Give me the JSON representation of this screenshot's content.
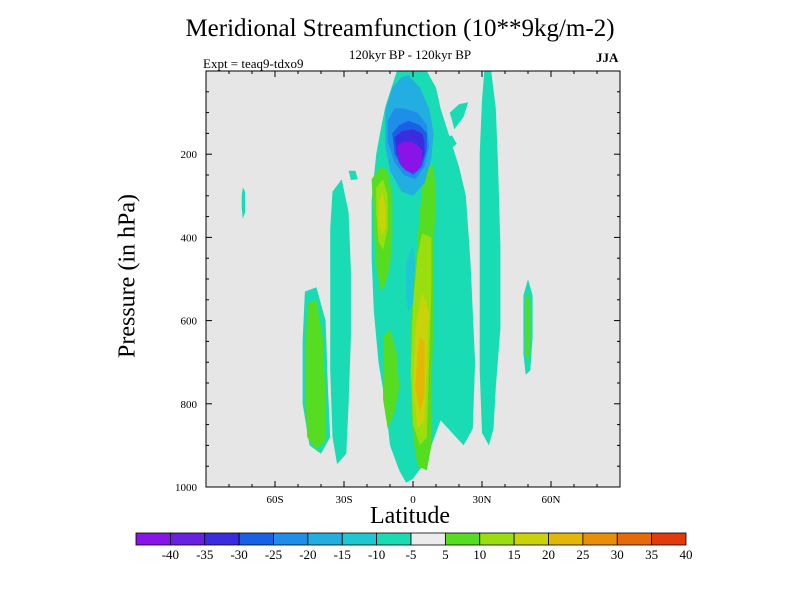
{
  "chart_data": {
    "type": "heatmap",
    "title": "Meridional Streamfunction (10**9kg/m-2)",
    "subtitle": "120kyr BP - 120kyr BP",
    "left_label": "Expt = teaq9-tdxo9",
    "right_label": "JJA",
    "xlabel": "Latitude",
    "ylabel": "Pressure (in hPa)",
    "xlim": [
      -90,
      90
    ],
    "ylim": [
      0,
      1000
    ],
    "y_inverted": true,
    "x_ticks": [
      {
        "value": -60,
        "label": "60S"
      },
      {
        "value": -30,
        "label": "30S"
      },
      {
        "value": 0,
        "label": "0"
      },
      {
        "value": 30,
        "label": "30N"
      },
      {
        "value": 60,
        "label": "60N"
      }
    ],
    "y_ticks": [
      {
        "value": 200,
        "label": "200"
      },
      {
        "value": 400,
        "label": "400"
      },
      {
        "value": 600,
        "label": "600"
      },
      {
        "value": 800,
        "label": "800"
      },
      {
        "value": 1000,
        "label": "1000"
      }
    ],
    "background_color": "#e6e6e6",
    "colorbar": {
      "levels": [
        "-40",
        "-35",
        "-30",
        "-25",
        "-20",
        "-15",
        "-10",
        "-5",
        "5",
        "10",
        "15",
        "20",
        "25",
        "30",
        "35",
        "40"
      ],
      "colors": [
        "#8a14e8",
        "#6a20e0",
        "#3c2ce0",
        "#1a60e6",
        "#1f8ee8",
        "#22aee0",
        "#1ec8d2",
        "#1adcb4",
        "#ececec",
        "#56dc20",
        "#9ade0e",
        "#cad20a",
        "#e4b606",
        "#ea8e08",
        "#e66a08",
        "#e23a08"
      ]
    },
    "regions": [
      {
        "name": "pos-5-a",
        "fill": "#1adcb4",
        "pts": [
          [
            -47,
            530
          ],
          [
            -42,
            520
          ],
          [
            -38,
            600
          ],
          [
            -37,
            760
          ],
          [
            -36,
            880
          ],
          [
            -40,
            920
          ],
          [
            -45,
            900
          ],
          [
            -48,
            800
          ],
          [
            -48,
            650
          ]
        ]
      },
      {
        "name": "pos-5-b",
        "fill": "#56dc20",
        "pts": [
          [
            -46,
            560
          ],
          [
            -42,
            550
          ],
          [
            -39,
            650
          ],
          [
            -38,
            800
          ],
          [
            -38,
            890
          ],
          [
            -42,
            910
          ],
          [
            -46,
            880
          ],
          [
            -47,
            750
          ]
        ]
      },
      {
        "name": "cyan-left-small",
        "fill": "#1adcb4",
        "pts": [
          [
            -74,
            280
          ],
          [
            -73,
            290
          ],
          [
            -73,
            340
          ],
          [
            -74,
            355
          ],
          [
            -74.5,
            330
          ],
          [
            -74.5,
            300
          ]
        ]
      },
      {
        "name": "cyan-30s",
        "fill": "#1adcb4",
        "pts": [
          [
            -35,
            290
          ],
          [
            -31,
            260
          ],
          [
            -28,
            340
          ],
          [
            -27,
            480
          ],
          [
            -27,
            640
          ],
          [
            -28,
            800
          ],
          [
            -29,
            920
          ],
          [
            -33,
            945
          ],
          [
            -35,
            880
          ],
          [
            -36,
            720
          ],
          [
            -36,
            520
          ],
          [
            -36,
            380
          ]
        ]
      },
      {
        "name": "cyan-top-left",
        "fill": "#1adcb4",
        "pts": [
          [
            -28,
            240
          ],
          [
            -25,
            240
          ],
          [
            -24,
            260
          ],
          [
            -27,
            262
          ]
        ]
      },
      {
        "name": "cyan-upper-central",
        "fill": "#1adcb4",
        "pts": [
          [
            -12,
            85
          ],
          [
            -7,
            0
          ],
          [
            0,
            0
          ],
          [
            6,
            0
          ],
          [
            10,
            40
          ],
          [
            12,
            90
          ],
          [
            16,
            160
          ],
          [
            20,
            230
          ],
          [
            23,
            300
          ],
          [
            25,
            460
          ],
          [
            27,
            700
          ],
          [
            26,
            860
          ],
          [
            22,
            900
          ],
          [
            17,
            870
          ],
          [
            12,
            840
          ],
          [
            8,
            900
          ],
          [
            4,
            950
          ],
          [
            0,
            980
          ],
          [
            -3,
            990
          ],
          [
            -6,
            960
          ],
          [
            -10,
            900
          ],
          [
            -12,
            800
          ],
          [
            -15,
            700
          ],
          [
            -17,
            580
          ],
          [
            -18,
            450
          ],
          [
            -18,
            310
          ],
          [
            -16,
            200
          ],
          [
            -14,
            140
          ]
        ]
      },
      {
        "name": "cyan-upper-extend",
        "fill": "#1adcb4",
        "pts": [
          [
            16,
            100
          ],
          [
            20,
            80
          ],
          [
            24,
            75
          ],
          [
            22,
            110
          ],
          [
            18,
            140
          ]
        ]
      },
      {
        "name": "cyan-upper-right-small",
        "fill": "#1adcb4",
        "pts": [
          [
            13,
            160
          ],
          [
            17,
            155
          ],
          [
            19,
            175
          ],
          [
            16,
            190
          ]
        ]
      },
      {
        "name": "cyan-long-right",
        "fill": "#1adcb4",
        "pts": [
          [
            30,
            70
          ],
          [
            31,
            0
          ],
          [
            34,
            0
          ],
          [
            36,
            90
          ],
          [
            37,
            230
          ],
          [
            38,
            420
          ],
          [
            38,
            620
          ],
          [
            36,
            760
          ],
          [
            35,
            860
          ],
          [
            33,
            900
          ],
          [
            30,
            870
          ],
          [
            29,
            720
          ],
          [
            29,
            520
          ],
          [
            29,
            340
          ],
          [
            29,
            200
          ]
        ]
      },
      {
        "name": "cyan-60n",
        "fill": "#1adcb4",
        "pts": [
          [
            48,
            540
          ],
          [
            50,
            500
          ],
          [
            52,
            540
          ],
          [
            52,
            640
          ],
          [
            51,
            720
          ],
          [
            49,
            730
          ],
          [
            48,
            680
          ]
        ]
      },
      {
        "name": "green-60n",
        "fill": "#56dc20",
        "pts": [
          [
            49,
            550
          ],
          [
            50,
            530
          ],
          [
            51,
            570
          ],
          [
            51,
            650
          ],
          [
            50,
            700
          ],
          [
            49,
            680
          ]
        ]
      },
      {
        "name": "green-left-tall",
        "fill": "#56dc20",
        "pts": [
          [
            -18,
            260
          ],
          [
            -14,
            230
          ],
          [
            -11,
            240
          ],
          [
            -9,
            300
          ],
          [
            -9,
            400
          ],
          [
            -10,
            470
          ],
          [
            -12,
            510
          ],
          [
            -14,
            530
          ],
          [
            -16,
            470
          ],
          [
            -17,
            380
          ]
        ]
      },
      {
        "name": "green-bottom-center",
        "fill": "#56dc20",
        "pts": [
          [
            -13,
            640
          ],
          [
            -10,
            620
          ],
          [
            -7,
            680
          ],
          [
            -6,
            760
          ],
          [
            -8,
            820
          ],
          [
            -11,
            860
          ],
          [
            -13,
            790
          ]
        ]
      },
      {
        "name": "green-main",
        "fill": "#56dc20",
        "pts": [
          [
            5,
            220
          ],
          [
            9,
            230
          ],
          [
            10,
            300
          ],
          [
            9,
            420
          ],
          [
            9,
            600
          ],
          [
            8,
            760
          ],
          [
            8,
            900
          ],
          [
            6,
            960
          ],
          [
            2,
            950
          ],
          [
            0,
            880
          ],
          [
            -1,
            760
          ],
          [
            -1,
            600
          ],
          [
            1,
            470
          ],
          [
            3,
            340
          ]
        ]
      },
      {
        "name": "teal-inner-central",
        "fill": "#1ec8d2",
        "pts": [
          [
            -3,
            460
          ],
          [
            0,
            420
          ],
          [
            1,
            460
          ],
          [
            0,
            560
          ],
          [
            -2,
            580
          ],
          [
            -3,
            540
          ]
        ]
      },
      {
        "name": "yellow-left",
        "fill": "#9ade0e",
        "pts": [
          [
            -16,
            280
          ],
          [
            -13,
            260
          ],
          [
            -11,
            300
          ],
          [
            -11,
            380
          ],
          [
            -13,
            430
          ],
          [
            -15,
            410
          ],
          [
            -16,
            340
          ]
        ]
      },
      {
        "name": "yellow-left-inner",
        "fill": "#cad20a",
        "pts": [
          [
            -15,
            310
          ],
          [
            -13,
            295
          ],
          [
            -12,
            330
          ],
          [
            -12,
            380
          ],
          [
            -13.5,
            395
          ],
          [
            -15,
            370
          ]
        ]
      },
      {
        "name": "yellow-main-1",
        "fill": "#9ade0e",
        "pts": [
          [
            4,
            390
          ],
          [
            8,
            400
          ],
          [
            8,
            520
          ],
          [
            7,
            700
          ],
          [
            6,
            880
          ],
          [
            3,
            900
          ],
          [
            0,
            850
          ],
          [
            -1,
            720
          ],
          [
            0,
            560
          ],
          [
            2,
            440
          ]
        ]
      },
      {
        "name": "yellow-main-2",
        "fill": "#cad20a",
        "pts": [
          [
            4,
            530
          ],
          [
            7,
            580
          ],
          [
            6,
            720
          ],
          [
            5,
            840
          ],
          [
            2,
            860
          ],
          [
            0,
            760
          ],
          [
            1,
            620
          ]
        ]
      },
      {
        "name": "yellow-main-3",
        "fill": "#e4b606",
        "pts": [
          [
            3,
            640
          ],
          [
            5,
            650
          ],
          [
            5,
            780
          ],
          [
            3,
            820
          ],
          [
            1,
            760
          ],
          [
            2,
            680
          ]
        ]
      },
      {
        "name": "blue-1",
        "fill": "#22aee0",
        "pts": [
          [
            -12,
            95
          ],
          [
            -9,
            40
          ],
          [
            -5,
            15
          ],
          [
            -2,
            10
          ],
          [
            3,
            40
          ],
          [
            7,
            90
          ],
          [
            9,
            150
          ],
          [
            8,
            210
          ],
          [
            5,
            270
          ],
          [
            0,
            300
          ],
          [
            -5,
            290
          ],
          [
            -10,
            240
          ],
          [
            -12,
            180
          ]
        ]
      },
      {
        "name": "blue-2",
        "fill": "#1f8ee8",
        "pts": [
          [
            -11,
            120
          ],
          [
            -8,
            90
          ],
          [
            -4,
            90
          ],
          [
            2,
            100
          ],
          [
            6,
            130
          ],
          [
            7,
            180
          ],
          [
            5,
            230
          ],
          [
            1,
            260
          ],
          [
            -4,
            250
          ],
          [
            -8,
            220
          ],
          [
            -11,
            170
          ]
        ]
      },
      {
        "name": "blue-3",
        "fill": "#1a60e6",
        "pts": [
          [
            -9,
            150
          ],
          [
            -6,
            130
          ],
          [
            -2,
            120
          ],
          [
            3,
            130
          ],
          [
            6,
            150
          ],
          [
            6,
            190
          ],
          [
            4,
            230
          ],
          [
            0,
            250
          ],
          [
            -5,
            230
          ],
          [
            -8,
            200
          ]
        ]
      },
      {
        "name": "blue-4",
        "fill": "#3c2ce0",
        "pts": [
          [
            -8,
            160
          ],
          [
            -5,
            145
          ],
          [
            0,
            140
          ],
          [
            4,
            150
          ],
          [
            5,
            170
          ],
          [
            5,
            200
          ],
          [
            3,
            230
          ],
          [
            0,
            240
          ],
          [
            -4,
            220
          ],
          [
            -7,
            200
          ]
        ]
      },
      {
        "name": "purple-core",
        "fill": "#8a14e8",
        "pts": [
          [
            -7,
            180
          ],
          [
            -4,
            170
          ],
          [
            0,
            170
          ],
          [
            4,
            190
          ],
          [
            4,
            220
          ],
          [
            2,
            240
          ],
          [
            0,
            245
          ],
          [
            -3,
            240
          ],
          [
            -6,
            220
          ]
        ]
      }
    ]
  }
}
